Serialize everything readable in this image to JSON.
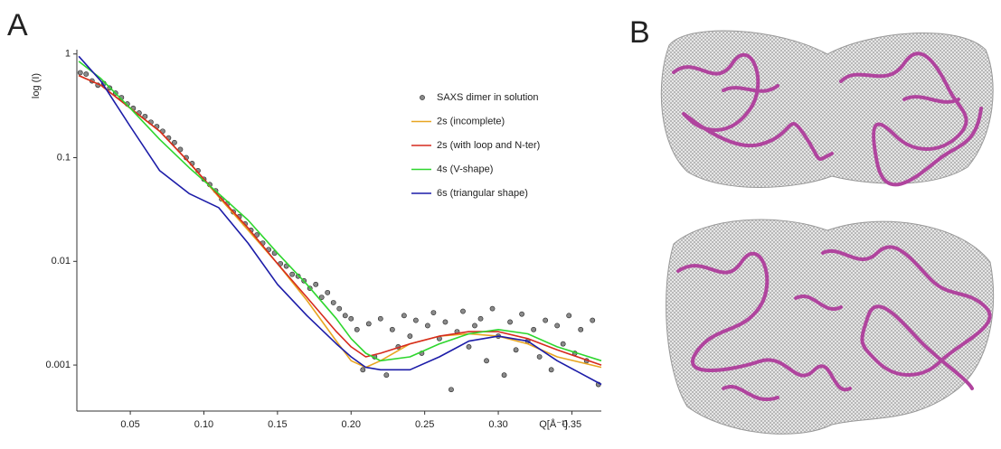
{
  "panels": {
    "left_label": "A",
    "right_label": "B"
  },
  "chart_data": {
    "type": "line",
    "ylabel": "log (I)",
    "xlabel": "Q[Å⁻¹]",
    "ylog": true,
    "legend": "upper right",
    "xlim": [
      0.0137,
      0.37
    ],
    "ylim": [
      0.00036,
      1.1
    ],
    "xticks": [
      0.05,
      {
        "value": 0.1,
        "label": "0.10"
      },
      0.15,
      {
        "value": 0.2,
        "label": "0.20"
      },
      0.25,
      {
        "value": 0.3,
        "label": "0.30"
      },
      0.35
    ],
    "yticks": [
      1,
      0.1,
      0.01,
      0.001
    ],
    "x": [
      0.015,
      0.03,
      0.05,
      0.07,
      0.09,
      0.11,
      0.13,
      0.15,
      0.17,
      0.19,
      0.2,
      0.21,
      0.22,
      0.24,
      0.26,
      0.28,
      0.3,
      0.32,
      0.34,
      0.37
    ],
    "series": [
      {
        "name": "SAXS dimer in solution",
        "type": "scatter",
        "color": "#8a8a8a",
        "x": [
          0.016,
          0.02,
          0.024,
          0.028,
          0.032,
          0.036,
          0.04,
          0.044,
          0.048,
          0.052,
          0.056,
          0.06,
          0.064,
          0.068,
          0.072,
          0.076,
          0.08,
          0.084,
          0.088,
          0.092,
          0.096,
          0.1,
          0.104,
          0.108,
          0.112,
          0.116,
          0.12,
          0.124,
          0.128,
          0.132,
          0.136,
          0.14,
          0.144,
          0.148,
          0.152,
          0.156,
          0.16,
          0.164,
          0.168,
          0.172,
          0.176,
          0.18,
          0.184,
          0.188,
          0.192,
          0.196,
          0.2,
          0.204,
          0.208,
          0.212,
          0.216,
          0.22,
          0.224,
          0.228,
          0.232,
          0.236,
          0.24,
          0.244,
          0.248,
          0.252,
          0.256,
          0.26,
          0.264,
          0.268,
          0.272,
          0.276,
          0.28,
          0.284,
          0.288,
          0.292,
          0.296,
          0.3,
          0.304,
          0.308,
          0.312,
          0.316,
          0.32,
          0.324,
          0.328,
          0.332,
          0.336,
          0.34,
          0.344,
          0.348,
          0.352,
          0.356,
          0.36,
          0.364,
          0.368
        ],
        "values": [
          0.66,
          0.64,
          0.55,
          0.5,
          0.52,
          0.47,
          0.42,
          0.38,
          0.33,
          0.3,
          0.27,
          0.25,
          0.22,
          0.2,
          0.18,
          0.155,
          0.14,
          0.12,
          0.1,
          0.088,
          0.075,
          0.062,
          0.055,
          0.048,
          0.04,
          0.036,
          0.03,
          0.027,
          0.023,
          0.02,
          0.018,
          0.015,
          0.013,
          0.012,
          0.0095,
          0.009,
          0.0075,
          0.0072,
          0.0065,
          0.0055,
          0.006,
          0.0045,
          0.005,
          0.004,
          0.0035,
          0.003,
          0.0028,
          0.0022,
          0.0009,
          0.0025,
          0.0012,
          0.0028,
          0.0008,
          0.0022,
          0.0015,
          0.003,
          0.0019,
          0.0027,
          0.0013,
          0.0024,
          0.0032,
          0.0018,
          0.0026,
          0.00058,
          0.0021,
          0.0033,
          0.0015,
          0.0024,
          0.0028,
          0.0011,
          0.0035,
          0.0019,
          0.0008,
          0.0026,
          0.0014,
          0.0031,
          0.0017,
          0.0022,
          0.0012,
          0.0027,
          0.0009,
          0.0024,
          0.0016,
          0.003,
          0.0013,
          0.0022,
          0.0011,
          0.0027,
          0.00065
        ]
      },
      {
        "name": "2s (incomplete)",
        "color": "#e8a521",
        "values": [
          0.62,
          0.5,
          0.3,
          0.18,
          0.09,
          0.042,
          0.02,
          0.0095,
          0.0042,
          0.0017,
          0.0011,
          0.00095,
          0.0011,
          0.0016,
          0.0019,
          0.002,
          0.0019,
          0.0016,
          0.0012,
          0.00095
        ]
      },
      {
        "name": "2s (with loop and N-ter)",
        "color": "#d62a1e",
        "values": [
          0.62,
          0.5,
          0.3,
          0.18,
          0.09,
          0.043,
          0.021,
          0.0095,
          0.0045,
          0.0021,
          0.0015,
          0.0012,
          0.0013,
          0.0016,
          0.0019,
          0.0021,
          0.0021,
          0.0018,
          0.0014,
          0.001
        ]
      },
      {
        "name": "4s (V-shape)",
        "color": "#2ed62e",
        "values": [
          0.85,
          0.58,
          0.3,
          0.15,
          0.08,
          0.045,
          0.025,
          0.012,
          0.006,
          0.0028,
          0.0018,
          0.0013,
          0.0011,
          0.0012,
          0.0016,
          0.002,
          0.0022,
          0.002,
          0.0015,
          0.0011
        ]
      },
      {
        "name": "6s (triangular shape)",
        "color": "#1c1ca8",
        "values": [
          0.95,
          0.55,
          0.2,
          0.075,
          0.045,
          0.033,
          0.015,
          0.006,
          0.003,
          0.0016,
          0.0012,
          0.00095,
          0.0009,
          0.0009,
          0.0012,
          0.0017,
          0.0019,
          0.0017,
          0.0011,
          0.00065
        ]
      }
    ]
  }
}
